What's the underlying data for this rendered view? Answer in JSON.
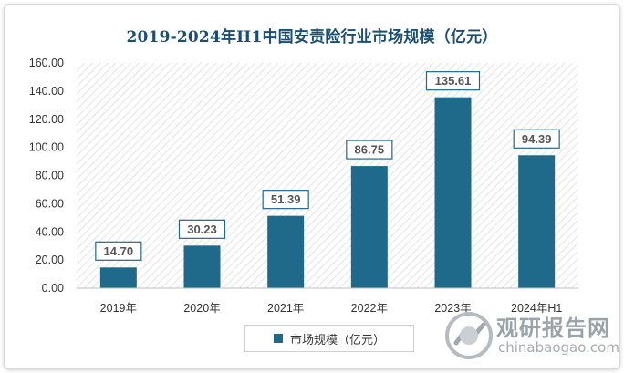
{
  "chart_data": {
    "type": "bar",
    "title": "2019-2024年H1中国安责险行业市场规模（亿元）",
    "categories": [
      "2019年",
      "2020年",
      "2021年",
      "2022年",
      "2023年",
      "2024年H1"
    ],
    "series": [
      {
        "name": "市场规模（亿元）",
        "values": [
          14.7,
          30.23,
          51.39,
          86.75,
          135.61,
          94.39
        ]
      }
    ],
    "data_labels": [
      "14.70",
      "30.23",
      "51.39",
      "86.75",
      "135.61",
      "94.39"
    ],
    "yticks": [
      "0.00",
      "20.00",
      "40.00",
      "60.00",
      "80.00",
      "100.00",
      "120.00",
      "140.00",
      "160.00"
    ],
    "ylim": [
      0,
      160
    ],
    "grid": false,
    "legend_position": "bottom",
    "bar_color": "#1f6a8a"
  },
  "watermark": {
    "cn": "观研报告网",
    "en": "chinabaogao.com"
  },
  "colors": {
    "title": "#1b4f72",
    "bar": "#1f6a8a"
  }
}
